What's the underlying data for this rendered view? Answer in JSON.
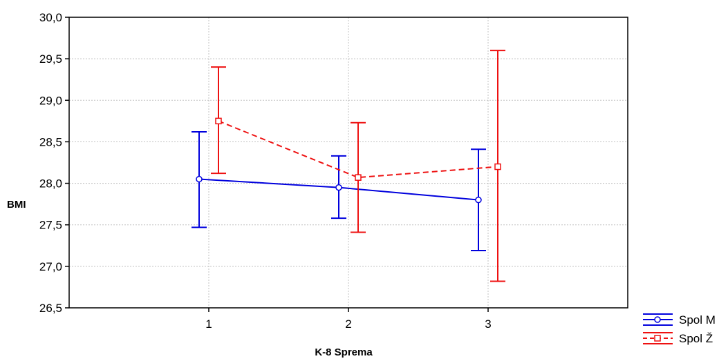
{
  "chart_data": {
    "type": "line",
    "xlabel": "K-8 Sprema",
    "ylabel": "BMI",
    "categories": [
      "1",
      "2",
      "3"
    ],
    "ylim": [
      26.5,
      30.0
    ],
    "y_ticks": [
      "26,5",
      "27,0",
      "27,5",
      "28,0",
      "28,5",
      "29,0",
      "29,5",
      "30,0"
    ],
    "grid": true,
    "legend_position": "bottom-right",
    "series": [
      {
        "name": "Spol M",
        "color": "#0000dd",
        "marker": "circle",
        "line_style": "solid",
        "values": [
          28.05,
          27.95,
          27.8
        ],
        "lower": [
          27.47,
          27.58,
          27.19
        ],
        "upper": [
          28.62,
          28.33,
          28.41
        ]
      },
      {
        "name": "Spol Ž",
        "color": "#ee1111",
        "marker": "square",
        "line_style": "dashed",
        "values": [
          28.75,
          28.07,
          28.2
        ],
        "lower": [
          28.12,
          27.41,
          26.82
        ],
        "upper": [
          29.4,
          28.73,
          29.6
        ]
      }
    ]
  }
}
